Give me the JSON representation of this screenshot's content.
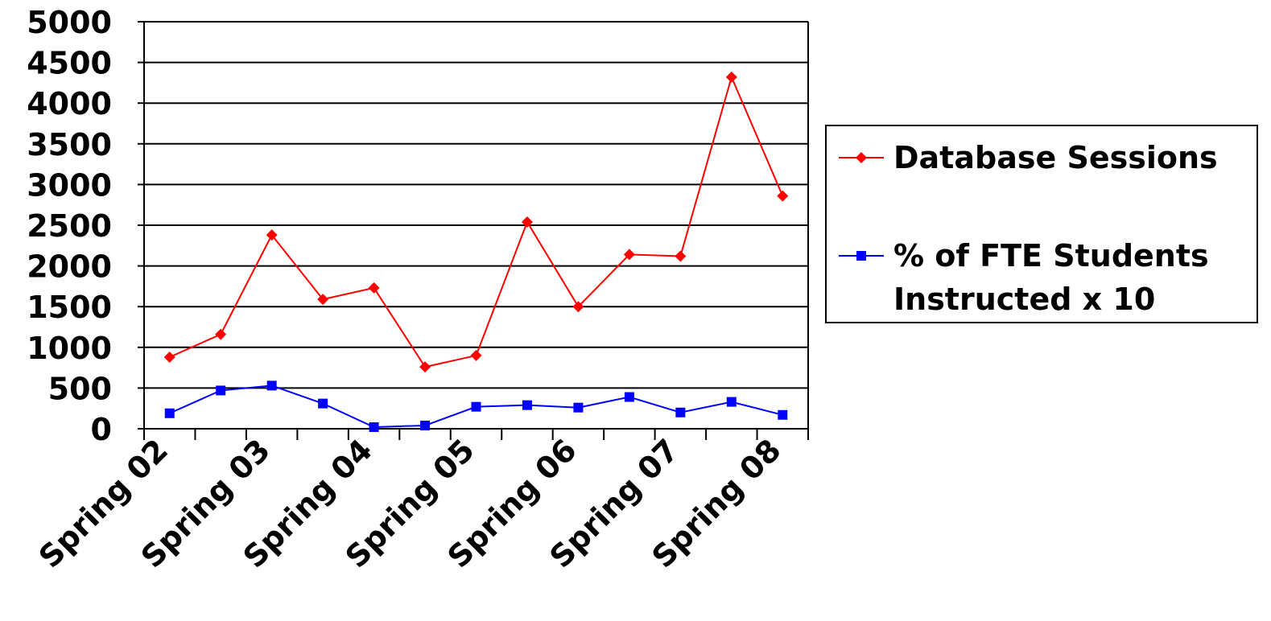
{
  "chart_data": {
    "type": "line",
    "title": "",
    "xlabel": "",
    "ylabel": "",
    "ylim": [
      0,
      5000
    ],
    "yticks": [
      "0",
      "500",
      "1000",
      "1500",
      "2000",
      "2500",
      "3000",
      "3500",
      "4000",
      "4500",
      "5000"
    ],
    "x_tick_labels": [
      "Spring 02",
      "Spring 03",
      "Spring 04",
      "Spring 05",
      "Spring 06",
      "Spring 07",
      "Spring 08"
    ],
    "grid": "horizontal",
    "legend_position": "right",
    "series": [
      {
        "name": "Database Sessions",
        "color": "#ff0000",
        "marker": "diamond",
        "values": [
          880,
          1160,
          2380,
          1590,
          1730,
          760,
          900,
          2540,
          1500,
          2140,
          2120,
          4320,
          2860
        ]
      },
      {
        "name": "% of FTE Students Instructed x 10",
        "legend_lines": [
          "% of FTE Students",
          "Instructed x 10"
        ],
        "color": "#0000ff",
        "marker": "square",
        "values": [
          190,
          470,
          530,
          310,
          20,
          40,
          270,
          290,
          260,
          390,
          200,
          330,
          170
        ]
      }
    ]
  }
}
